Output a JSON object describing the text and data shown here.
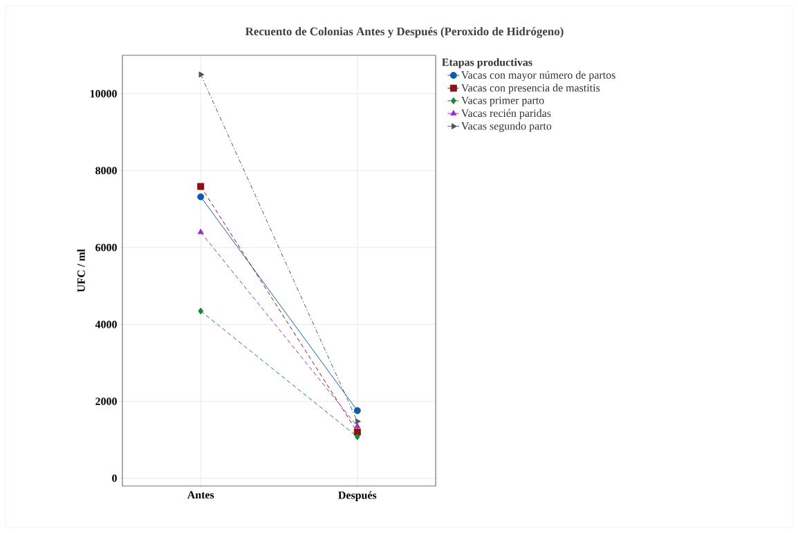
{
  "chart_data": {
    "type": "line",
    "title": "Recuento de Colonias Antes y Después (Peroxido de Hidrógeno)",
    "ylabel": "UFC / ml",
    "legend_title": "Etapas productivas",
    "categories": [
      "Antes",
      "Después"
    ],
    "series": [
      {
        "name": "Vacas con mayor número de partos",
        "color": "#0b5cad",
        "values": [
          7320,
          1760
        ],
        "marker": "circle",
        "line_style": "solid"
      },
      {
        "name": "Vacas con presencia de mastitis",
        "color": "#8e1111",
        "values": [
          7590,
          1200
        ],
        "marker": "square",
        "line_style": "dashed"
      },
      {
        "name": "Vacas primer parto",
        "color": "#138a2e",
        "values": [
          4350,
          1080
        ],
        "marker": "diamond",
        "line_style": "dashed"
      },
      {
        "name": "Vacas recién paridas",
        "color": "#9a2ccc",
        "values": [
          6400,
          1350
        ],
        "marker": "triangle",
        "line_style": "dashed"
      },
      {
        "name": "Vacas segundo parto",
        "color": "#555555",
        "values": [
          10500,
          1480
        ],
        "marker": "triangle-right",
        "line_style": "dashdot"
      }
    ],
    "ylim": [
      -200,
      11000
    ],
    "yticks": [
      0,
      2000,
      4000,
      6000,
      8000,
      10000
    ],
    "grid": true,
    "legend": "top right"
  }
}
